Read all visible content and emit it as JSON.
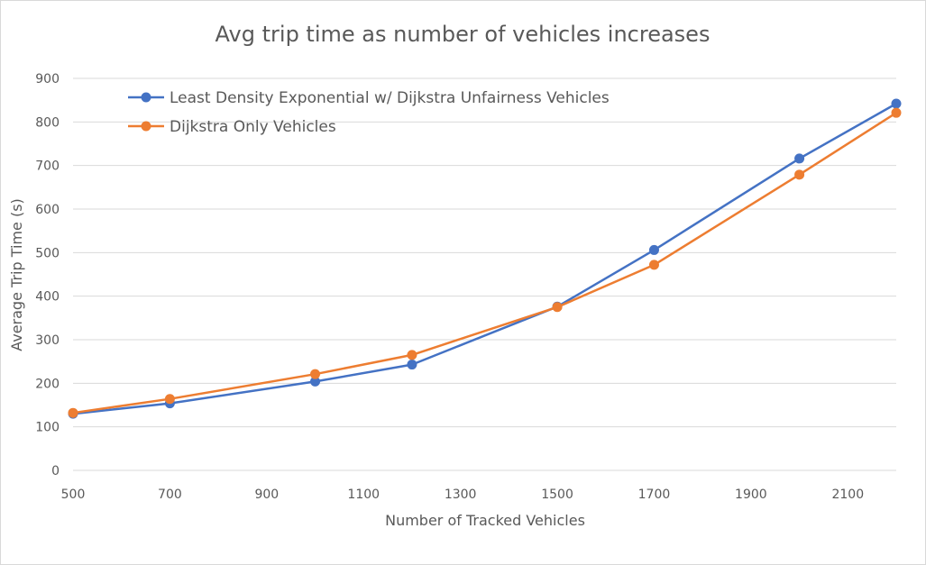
{
  "chart_data": {
    "type": "line",
    "title": "Avg trip time as number of vehicles increases",
    "xlabel": "Number of Tracked Vehicles",
    "ylabel": "Average Trip Time (s)",
    "xlim": [
      500,
      2200
    ],
    "ylim": [
      0,
      900
    ],
    "xticks": [
      500,
      700,
      900,
      1100,
      1300,
      1500,
      1700,
      1900,
      2100
    ],
    "yticks": [
      0,
      100,
      200,
      300,
      400,
      500,
      600,
      700,
      800,
      900
    ],
    "grid": "horizontal",
    "legend": "top-left",
    "series": [
      {
        "name": "Least Density Exponential w/ Dijkstra Unfairness Vehicles",
        "color": "#4472C4",
        "x": [
          500,
          700,
          1000,
          1200,
          1500,
          1700,
          2000,
          2200
        ],
        "y": [
          130,
          154,
          204,
          243,
          376,
          506,
          716,
          842
        ]
      },
      {
        "name": "Dijkstra Only Vehicles",
        "color": "#ED7D31",
        "x": [
          500,
          700,
          1000,
          1200,
          1500,
          1700,
          2000,
          2200
        ],
        "y": [
          132,
          164,
          221,
          265,
          375,
          472,
          679,
          821
        ]
      }
    ]
  }
}
